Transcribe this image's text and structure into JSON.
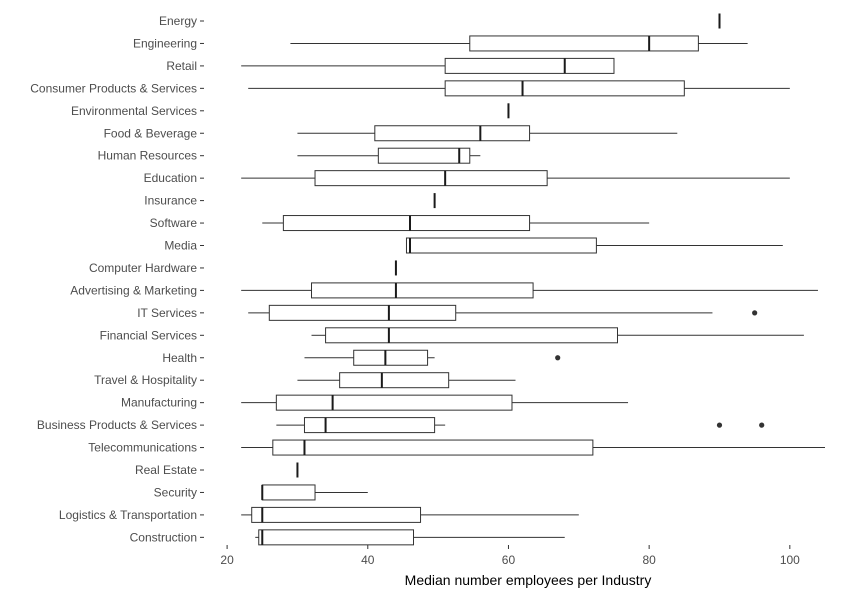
{
  "chart_data": {
    "type": "boxplot",
    "orientation": "horizontal",
    "xlabel": "Median number employees per Industry",
    "xlim": [
      17,
      105
    ],
    "xticks": [
      20,
      40,
      60,
      80,
      100
    ],
    "grid": false,
    "categories": [
      "Energy",
      "Engineering",
      "Retail",
      "Consumer Products & Services",
      "Environmental Services",
      "Food & Beverage",
      "Human Resources",
      "Education",
      "Insurance",
      "Software",
      "Media",
      "Computer Hardware",
      "Advertising & Marketing",
      "IT Services",
      "Financial Services",
      "Health",
      "Travel & Hospitality",
      "Manufacturing",
      "Business Products & Services",
      "Telecommunications",
      "Real Estate",
      "Security",
      "Logistics & Transportation",
      "Construction"
    ],
    "boxes": [
      {
        "min": 90,
        "q1": 90,
        "median": 90,
        "q3": 90,
        "max": 90,
        "outliers": []
      },
      {
        "min": 29,
        "q1": 54.5,
        "median": 80,
        "q3": 87,
        "max": 94,
        "outliers": []
      },
      {
        "min": 22,
        "q1": 51,
        "median": 68,
        "q3": 75,
        "max": 75,
        "outliers": []
      },
      {
        "min": 23,
        "q1": 51,
        "median": 62,
        "q3": 85,
        "max": 100,
        "outliers": []
      },
      {
        "min": 60,
        "q1": 60,
        "median": 60,
        "q3": 60,
        "max": 60,
        "outliers": []
      },
      {
        "min": 30,
        "q1": 41,
        "median": 56,
        "q3": 63,
        "max": 84,
        "outliers": []
      },
      {
        "min": 30,
        "q1": 41.5,
        "median": 53,
        "q3": 54.5,
        "max": 56,
        "outliers": []
      },
      {
        "min": 22,
        "q1": 32.5,
        "median": 51,
        "q3": 65.5,
        "max": 100,
        "outliers": []
      },
      {
        "min": 49.5,
        "q1": 49.5,
        "median": 49.5,
        "q3": 49.5,
        "max": 49.5,
        "outliers": []
      },
      {
        "min": 25,
        "q1": 28,
        "median": 46,
        "q3": 63,
        "max": 80,
        "outliers": []
      },
      {
        "min": 45.5,
        "q1": 45.5,
        "median": 46,
        "q3": 72.5,
        "max": 99,
        "outliers": []
      },
      {
        "min": 44,
        "q1": 44,
        "median": 44,
        "q3": 44,
        "max": 44,
        "outliers": []
      },
      {
        "min": 22,
        "q1": 32,
        "median": 44,
        "q3": 63.5,
        "max": 104,
        "outliers": []
      },
      {
        "min": 23,
        "q1": 26,
        "median": 43,
        "q3": 52.5,
        "max": 89,
        "outliers": [
          95
        ]
      },
      {
        "min": 32,
        "q1": 34,
        "median": 43,
        "q3": 75.5,
        "max": 102,
        "outliers": []
      },
      {
        "min": 31,
        "q1": 38,
        "median": 42.5,
        "q3": 48.5,
        "max": 49.5,
        "outliers": [
          67
        ]
      },
      {
        "min": 30,
        "q1": 36,
        "median": 42,
        "q3": 51.5,
        "max": 61,
        "outliers": []
      },
      {
        "min": 22,
        "q1": 27,
        "median": 35,
        "q3": 60.5,
        "max": 77,
        "outliers": []
      },
      {
        "min": 27,
        "q1": 31,
        "median": 34,
        "q3": 49.5,
        "max": 51,
        "outliers": [
          90,
          96
        ]
      },
      {
        "min": 22,
        "q1": 26.5,
        "median": 31,
        "q3": 72,
        "max": 105,
        "outliers": []
      },
      {
        "min": 30,
        "q1": 30,
        "median": 30,
        "q3": 30,
        "max": 30,
        "outliers": []
      },
      {
        "min": 25,
        "q1": 25,
        "median": 25,
        "q3": 32.5,
        "max": 40,
        "outliers": []
      },
      {
        "min": 22,
        "q1": 23.5,
        "median": 25,
        "q3": 47.5,
        "max": 70,
        "outliers": []
      },
      {
        "min": 24,
        "q1": 24.5,
        "median": 25,
        "q3": 46.5,
        "max": 68,
        "outliers": []
      }
    ]
  }
}
